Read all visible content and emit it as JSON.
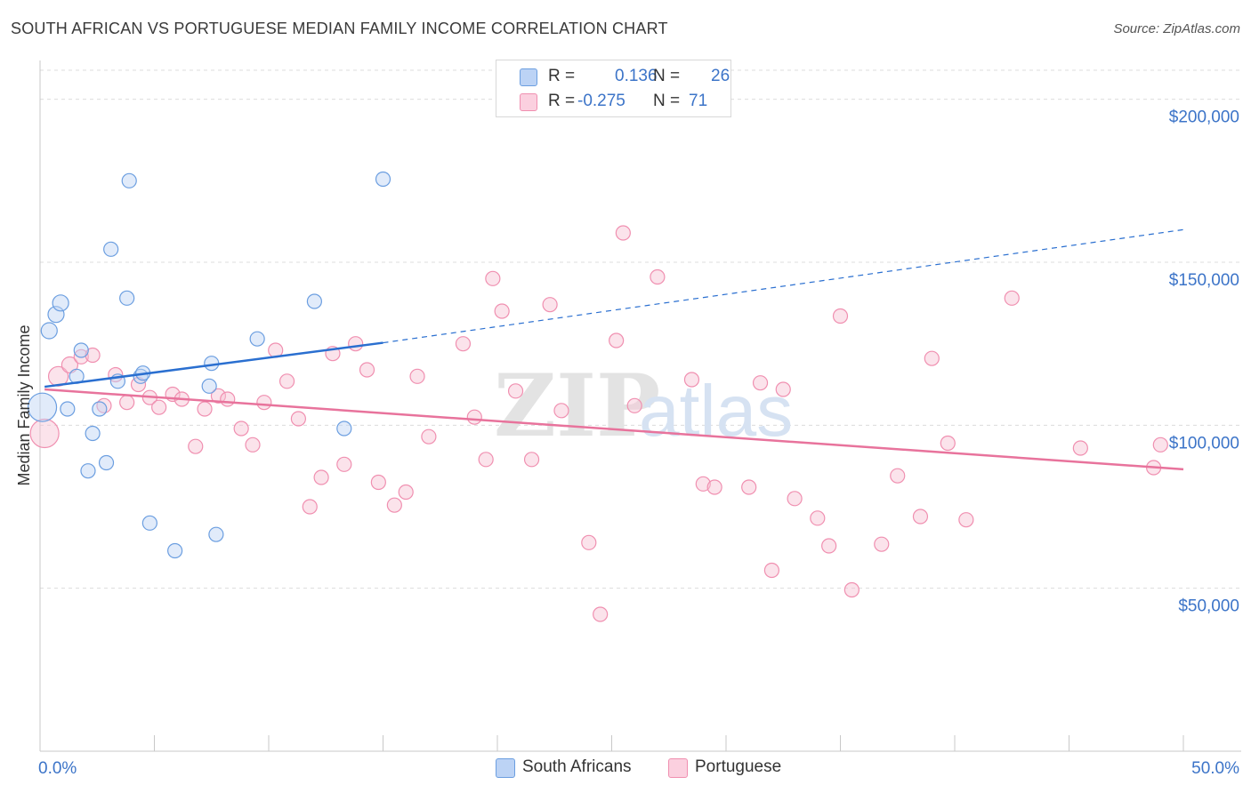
{
  "title": "SOUTH AFRICAN VS PORTUGUESE MEDIAN FAMILY INCOME CORRELATION CHART",
  "source": "Source: ZipAtlas.com",
  "legend": {
    "rows": [
      {
        "r_label": "R =",
        "r_value": "0.136",
        "n_label": "N =",
        "n_value": "26"
      },
      {
        "r_label": "R =",
        "r_value": "-0.275",
        "n_label": "N =",
        "n_value": "71"
      }
    ]
  },
  "chart_data": {
    "type": "scatter",
    "title": "SOUTH AFRICAN VS PORTUGUESE MEDIAN FAMILY INCOME CORRELATION CHART",
    "xlabel": "",
    "ylabel": "Median Family Income",
    "xlim": [
      0,
      50
    ],
    "ylim": [
      0,
      210000
    ],
    "x_tick_labels": [
      "0.0%",
      "50.0%"
    ],
    "y_ticks": [
      50000,
      100000,
      150000,
      200000
    ],
    "y_tick_labels": [
      "$50,000",
      "$100,000",
      "$150,000",
      "$200,000"
    ],
    "grid": true,
    "watermark": "ZIPatlas",
    "colors": {
      "south_africans": "#6b9ee0",
      "portuguese": "#f08fb0",
      "blue_line": "#2a6fd0",
      "pink_line": "#e8739c",
      "axis_text": "#3c74c8"
    },
    "series": [
      {
        "name": "South Africans",
        "r": 0.136,
        "n": 26,
        "trend": {
          "x0": 0.2,
          "y0": 111800,
          "x1": 15,
          "y1": 125300
        },
        "trend_dashed": {
          "x0": 15,
          "y0": 125300,
          "x1": 50,
          "y1": 160000
        },
        "points": [
          [
            0.1,
            105500,
            16
          ],
          [
            0.4,
            129000,
            9
          ],
          [
            0.7,
            134000,
            9
          ],
          [
            0.9,
            137500,
            9
          ],
          [
            1.2,
            105000,
            8
          ],
          [
            1.6,
            115000,
            8
          ],
          [
            1.8,
            123000,
            8
          ],
          [
            2.1,
            86000,
            8
          ],
          [
            2.3,
            97500,
            8
          ],
          [
            2.6,
            105000,
            8
          ],
          [
            2.9,
            88500,
            8
          ],
          [
            3.1,
            154000,
            8
          ],
          [
            3.4,
            113500,
            8
          ],
          [
            3.8,
            139000,
            8
          ],
          [
            3.9,
            175000,
            8
          ],
          [
            4.4,
            115000,
            8
          ],
          [
            4.5,
            116000,
            8
          ],
          [
            4.8,
            70000,
            8
          ],
          [
            5.9,
            61500,
            8
          ],
          [
            7.4,
            112000,
            8
          ],
          [
            7.5,
            119000,
            8
          ],
          [
            7.7,
            66500,
            8
          ],
          [
            9.5,
            126500,
            8
          ],
          [
            12.0,
            138000,
            8
          ],
          [
            13.3,
            99000,
            8
          ],
          [
            15.0,
            175500,
            8
          ]
        ]
      },
      {
        "name": "Portuguese",
        "r": -0.275,
        "n": 71,
        "trend": {
          "x0": 0.2,
          "y0": 111000,
          "x1": 50,
          "y1": 86500
        },
        "points": [
          [
            0.2,
            97500,
            16
          ],
          [
            0.8,
            115000,
            11
          ],
          [
            1.3,
            118500,
            9
          ],
          [
            1.8,
            121000,
            8
          ],
          [
            2.3,
            121500,
            8
          ],
          [
            2.8,
            106000,
            8
          ],
          [
            3.3,
            115500,
            8
          ],
          [
            3.8,
            107000,
            8
          ],
          [
            4.3,
            112500,
            8
          ],
          [
            4.8,
            108500,
            8
          ],
          [
            5.2,
            105500,
            8
          ],
          [
            5.8,
            109500,
            8
          ],
          [
            6.2,
            108000,
            8
          ],
          [
            6.8,
            93500,
            8
          ],
          [
            7.2,
            105000,
            8
          ],
          [
            7.8,
            109000,
            8
          ],
          [
            8.2,
            108000,
            8
          ],
          [
            8.8,
            99000,
            8
          ],
          [
            9.3,
            94000,
            8
          ],
          [
            9.8,
            107000,
            8
          ],
          [
            10.3,
            123000,
            8
          ],
          [
            10.8,
            113500,
            8
          ],
          [
            11.3,
            102000,
            8
          ],
          [
            11.8,
            75000,
            8
          ],
          [
            12.3,
            84000,
            8
          ],
          [
            12.8,
            122000,
            8
          ],
          [
            13.3,
            88000,
            8
          ],
          [
            13.8,
            125000,
            8
          ],
          [
            14.3,
            117000,
            8
          ],
          [
            14.8,
            82500,
            8
          ],
          [
            15.5,
            75500,
            8
          ],
          [
            16.0,
            79500,
            8
          ],
          [
            16.5,
            115000,
            8
          ],
          [
            17.0,
            96500,
            8
          ],
          [
            18.5,
            125000,
            8
          ],
          [
            19.0,
            102500,
            8
          ],
          [
            19.5,
            89500,
            8
          ],
          [
            19.8,
            145000,
            8
          ],
          [
            20.2,
            135000,
            8
          ],
          [
            20.8,
            110500,
            8
          ],
          [
            21.5,
            89500,
            8
          ],
          [
            22.3,
            137000,
            8
          ],
          [
            22.8,
            104500,
            8
          ],
          [
            24.0,
            64000,
            8
          ],
          [
            24.5,
            42000,
            8
          ],
          [
            25.2,
            126000,
            8
          ],
          [
            25.5,
            159000,
            8
          ],
          [
            26.0,
            106000,
            8
          ],
          [
            27.0,
            145500,
            8
          ],
          [
            28.5,
            114000,
            8
          ],
          [
            29.0,
            82000,
            8
          ],
          [
            29.5,
            81000,
            8
          ],
          [
            31.0,
            81000,
            8
          ],
          [
            31.5,
            113000,
            8
          ],
          [
            32.0,
            55500,
            8
          ],
          [
            32.5,
            111000,
            8
          ],
          [
            33.0,
            77500,
            8
          ],
          [
            34.0,
            71500,
            8
          ],
          [
            34.5,
            63000,
            8
          ],
          [
            35.0,
            133500,
            8
          ],
          [
            35.5,
            49500,
            8
          ],
          [
            36.8,
            63500,
            8
          ],
          [
            37.5,
            84500,
            8
          ],
          [
            38.5,
            72000,
            8
          ],
          [
            39.0,
            120500,
            8
          ],
          [
            39.7,
            94500,
            8
          ],
          [
            40.5,
            71000,
            8
          ],
          [
            42.5,
            139000,
            8
          ],
          [
            45.5,
            93000,
            8
          ],
          [
            48.7,
            87000,
            8
          ],
          [
            49.0,
            94000,
            8
          ]
        ]
      }
    ]
  }
}
